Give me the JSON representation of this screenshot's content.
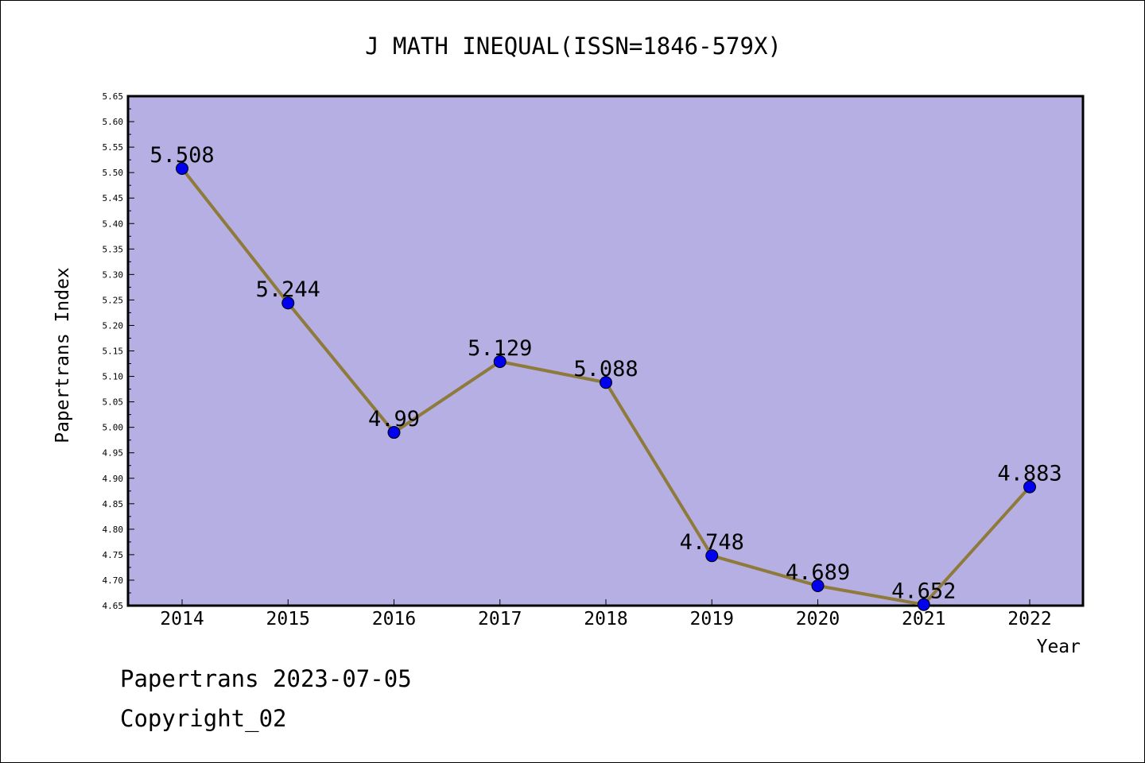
{
  "chart_data": {
    "type": "line",
    "title": "J MATH INEQUAL(ISSN=1846-579X)",
    "xlabel": "Year",
    "ylabel": "Papertrans Index",
    "x": [
      "2014",
      "2015",
      "2016",
      "2017",
      "2018",
      "2019",
      "2020",
      "2021",
      "2022"
    ],
    "series": [
      {
        "values": [
          5.508,
          5.244,
          4.99,
          5.129,
          5.088,
          4.748,
          4.689,
          4.652,
          4.883
        ],
        "labels": [
          "5.508",
          "5.244",
          "4.99",
          "5.129",
          "5.088",
          "4.748",
          "4.689",
          "4.652",
          "4.883"
        ]
      }
    ],
    "ylim": [
      4.65,
      5.65
    ],
    "yticks": [
      "4.65",
      "4.70",
      "4.75",
      "4.80",
      "4.85",
      "4.90",
      "4.95",
      "5.00",
      "5.05",
      "5.10",
      "5.15",
      "5.20",
      "5.25",
      "5.30",
      "5.35",
      "5.40",
      "5.45",
      "5.50",
      "5.55",
      "5.60",
      "5.65"
    ],
    "grid": false,
    "colors": {
      "plot_background": "#b5afe3",
      "line": "#8e7a3a",
      "marker": "#0000ee"
    }
  },
  "footer": {
    "date_line": "Papertrans 2023-07-05",
    "copyright_line": "Copyright_02"
  }
}
